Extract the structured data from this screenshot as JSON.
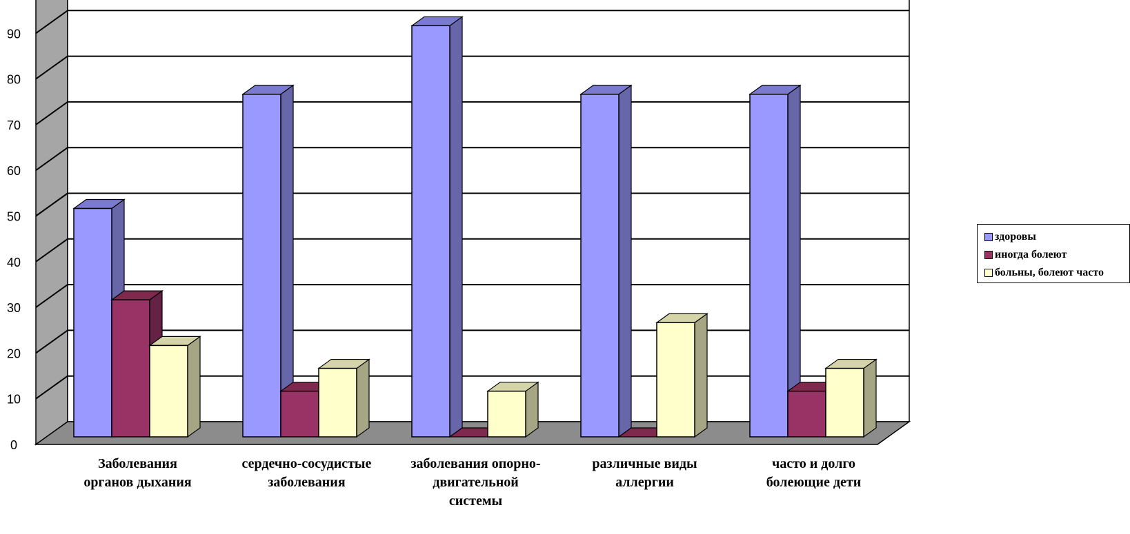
{
  "chart_data": {
    "type": "bar",
    "categories": [
      "Заболевания органов дыхания",
      "сердечно-сосудистые заболевания",
      "заболевания опорно-двигательной системы",
      "различные виды аллергии",
      "часто и долго болеющие дети"
    ],
    "category_label_lines": [
      [
        "Заболевания",
        "органов дыхания"
      ],
      [
        "сердечно-сосудистые",
        "заболевания"
      ],
      [
        "заболевания опорно-",
        "двигательной",
        "системы"
      ],
      [
        "различные виды",
        "аллергии"
      ],
      [
        "часто и долго",
        "болеющие дети"
      ]
    ],
    "series": [
      {
        "name": "здоровы",
        "values": [
          50,
          75,
          90,
          75,
          75
        ],
        "color": "#9999ff",
        "side_color": "#6666a8",
        "top_color": "#7a7ad0"
      },
      {
        "name": "иногда болеют",
        "values": [
          30,
          10,
          0,
          0,
          10
        ],
        "color": "#993366",
        "side_color": "#662244",
        "top_color": "#80294f"
      },
      {
        "name": "больны, болеют часто",
        "values": [
          20,
          15,
          10,
          25,
          15
        ],
        "color": "#ffffcc",
        "side_color": "#a6a685",
        "top_color": "#d4d4a8"
      }
    ],
    "yticks": [
      0,
      10,
      20,
      30,
      40,
      50,
      60,
      70,
      80,
      90
    ],
    "ylim": [
      0,
      90
    ],
    "grid": true,
    "three_d": true,
    "legend_position": "right",
    "title": "",
    "xlabel": "",
    "ylabel": ""
  }
}
